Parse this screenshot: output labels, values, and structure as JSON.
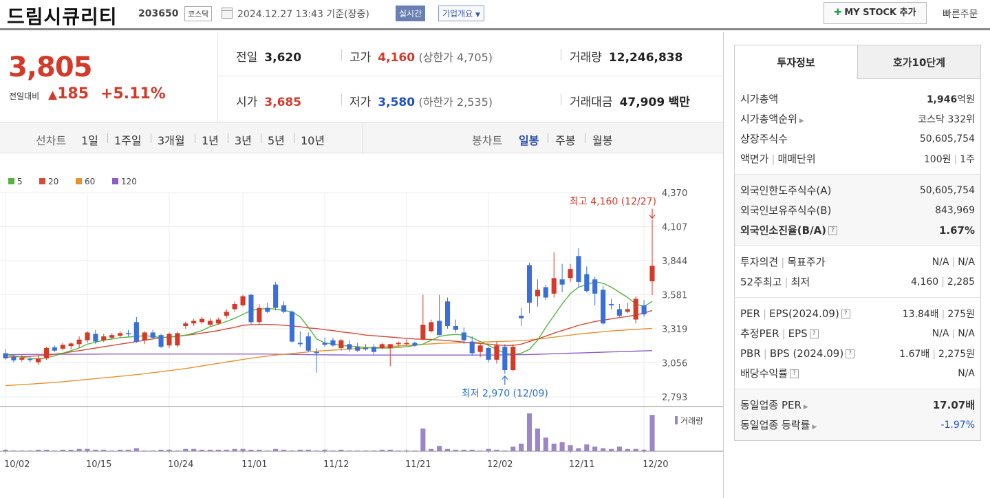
{
  "header": {
    "stock_name": "드림시큐리티",
    "stock_code": "203650",
    "market": "코스닥",
    "datetime": "2024.12.27 13:43",
    "basis": "기준(장중)",
    "realtime_label": "실시간",
    "overview_label": "기업개요",
    "mystock_label": "MY STOCK 추가",
    "quick_order_label": "빠른주문"
  },
  "price": {
    "current": "3,805",
    "change_label": "전일대비",
    "change": "185",
    "change_pct": "+5.11%"
  },
  "stats": {
    "prev_label": "전일",
    "prev": "3,620",
    "high_label": "고가",
    "high": "4,160",
    "upper_limit": "(상한가 4,705)",
    "volume_label": "거래량",
    "volume": "12,246,838",
    "open_label": "시가",
    "open": "3,685",
    "low_label": "저가",
    "low": "3,580",
    "lower_limit": "(하한가 2,535)",
    "amount_label": "거래대금",
    "amount": "47,909",
    "amount_unit": "백만"
  },
  "toolbar": {
    "line_chart_label": "선차트",
    "periods": [
      "1일",
      "1주일",
      "3개월",
      "1년",
      "3년",
      "5년",
      "10년"
    ],
    "candle_chart_label": "봉차트",
    "candle_periods": [
      "일봉",
      "주봉",
      "월봉"
    ],
    "selected_candle": "일봉"
  },
  "chart_data": {
    "type": "candlestick",
    "legend": [
      {
        "name": "5",
        "color": "#55b43f"
      },
      {
        "name": "20",
        "color": "#d44a38"
      },
      {
        "name": "60",
        "color": "#e8922e"
      },
      {
        "name": "120",
        "color": "#8e5cc8"
      }
    ],
    "y_ticks": [
      "4,370",
      "4,107",
      "3,844",
      "3,581",
      "3,319",
      "3,056",
      "2,793"
    ],
    "ylim": [
      2793,
      4370
    ],
    "x_tick_labels": [
      "10/02",
      "10/15",
      "10/24",
      "11/01",
      "11/12",
      "11/21",
      "12/02",
      "12/11",
      "12/20"
    ],
    "x_tick_index": [
      0,
      10,
      20,
      29,
      39,
      49,
      59,
      69,
      78
    ],
    "high_annotation": "최고 4,160 (12/27)",
    "low_annotation": "최저 2,970 (12/09)",
    "volume_label": "거래량",
    "colors": {
      "up": "#d43a2a",
      "down": "#3b6fd8",
      "volume": "#9b86c8"
    },
    "candles": [
      {
        "o": 3130,
        "h": 3165,
        "l": 3080,
        "c": 3090
      },
      {
        "o": 3100,
        "h": 3120,
        "l": 3060,
        "c": 3075
      },
      {
        "o": 3080,
        "h": 3115,
        "l": 3065,
        "c": 3095
      },
      {
        "o": 3085,
        "h": 3110,
        "l": 3060,
        "c": 3080
      },
      {
        "o": 3060,
        "h": 3110,
        "l": 3040,
        "c": 3090
      },
      {
        "o": 3090,
        "h": 3180,
        "l": 3080,
        "c": 3170
      },
      {
        "o": 3175,
        "h": 3190,
        "l": 3140,
        "c": 3150
      },
      {
        "o": 3165,
        "h": 3210,
        "l": 3150,
        "c": 3195
      },
      {
        "o": 3185,
        "h": 3215,
        "l": 3160,
        "c": 3205
      },
      {
        "o": 3200,
        "h": 3260,
        "l": 3170,
        "c": 3235
      },
      {
        "o": 3230,
        "h": 3300,
        "l": 3210,
        "c": 3290
      },
      {
        "o": 3280,
        "h": 3310,
        "l": 3200,
        "c": 3220
      },
      {
        "o": 3230,
        "h": 3280,
        "l": 3215,
        "c": 3260
      },
      {
        "o": 3250,
        "h": 3285,
        "l": 3235,
        "c": 3270
      },
      {
        "o": 3265,
        "h": 3300,
        "l": 3250,
        "c": 3285
      },
      {
        "o": 3285,
        "h": 3310,
        "l": 3260,
        "c": 3280
      },
      {
        "o": 3370,
        "h": 3410,
        "l": 3210,
        "c": 3220
      },
      {
        "o": 3230,
        "h": 3300,
        "l": 3200,
        "c": 3290
      },
      {
        "o": 3290,
        "h": 3310,
        "l": 3240,
        "c": 3250
      },
      {
        "o": 3270,
        "h": 3280,
        "l": 3170,
        "c": 3180
      },
      {
        "o": 3190,
        "h": 3290,
        "l": 3170,
        "c": 3280
      },
      {
        "o": 3190,
        "h": 3300,
        "l": 3175,
        "c": 3285
      },
      {
        "o": 3340,
        "h": 3375,
        "l": 3320,
        "c": 3360
      },
      {
        "o": 3360,
        "h": 3395,
        "l": 3340,
        "c": 3380
      },
      {
        "o": 3370,
        "h": 3410,
        "l": 3355,
        "c": 3395
      },
      {
        "o": 3350,
        "h": 3400,
        "l": 3340,
        "c": 3380
      },
      {
        "o": 3360,
        "h": 3405,
        "l": 3350,
        "c": 3390
      },
      {
        "o": 3420,
        "h": 3470,
        "l": 3400,
        "c": 3450
      },
      {
        "o": 3470,
        "h": 3530,
        "l": 3450,
        "c": 3510
      },
      {
        "o": 3500,
        "h": 3580,
        "l": 3490,
        "c": 3570
      },
      {
        "o": 3580,
        "h": 3590,
        "l": 3350,
        "c": 3370
      },
      {
        "o": 3370,
        "h": 3510,
        "l": 3350,
        "c": 3480
      },
      {
        "o": 3480,
        "h": 3520,
        "l": 3440,
        "c": 3450
      },
      {
        "o": 3660,
        "h": 3680,
        "l": 3460,
        "c": 3480
      },
      {
        "o": 3500,
        "h": 3530,
        "l": 3440,
        "c": 3450
      },
      {
        "o": 3450,
        "h": 3460,
        "l": 3210,
        "c": 3220
      },
      {
        "o": 3210,
        "h": 3300,
        "l": 3180,
        "c": 3200
      },
      {
        "o": 3260,
        "h": 3290,
        "l": 3140,
        "c": 3150
      },
      {
        "o": 3140,
        "h": 3170,
        "l": 2980,
        "c": 3130
      },
      {
        "o": 3210,
        "h": 3250,
        "l": 3180,
        "c": 3195
      },
      {
        "o": 3230,
        "h": 3250,
        "l": 3180,
        "c": 3190
      },
      {
        "o": 3170,
        "h": 3240,
        "l": 3150,
        "c": 3230
      },
      {
        "o": 3200,
        "h": 3230,
        "l": 3140,
        "c": 3160
      },
      {
        "o": 3180,
        "h": 3210,
        "l": 3140,
        "c": 3150
      },
      {
        "o": 3170,
        "h": 3200,
        "l": 3150,
        "c": 3160
      },
      {
        "o": 3180,
        "h": 3200,
        "l": 3120,
        "c": 3140
      },
      {
        "o": 3170,
        "h": 3210,
        "l": 3160,
        "c": 3200
      },
      {
        "o": 3170,
        "h": 3200,
        "l": 3030,
        "c": 3200
      },
      {
        "o": 3200,
        "h": 3220,
        "l": 3180,
        "c": 3210
      },
      {
        "o": 3200,
        "h": 3240,
        "l": 3190,
        "c": 3210
      },
      {
        "o": 3210,
        "h": 3220,
        "l": 3180,
        "c": 3190
      },
      {
        "o": 3240,
        "h": 3580,
        "l": 3230,
        "c": 3350
      },
      {
        "o": 3300,
        "h": 3390,
        "l": 3290,
        "c": 3370
      },
      {
        "o": 3380,
        "h": 3580,
        "l": 3270,
        "c": 3270
      },
      {
        "o": 3530,
        "h": 3560,
        "l": 3320,
        "c": 3340
      },
      {
        "o": 3340,
        "h": 3390,
        "l": 3290,
        "c": 3310
      },
      {
        "o": 3290,
        "h": 3330,
        "l": 3200,
        "c": 3230
      },
      {
        "o": 3220,
        "h": 3260,
        "l": 3110,
        "c": 3130
      },
      {
        "o": 3140,
        "h": 3200,
        "l": 3100,
        "c": 3190
      },
      {
        "o": 3170,
        "h": 3180,
        "l": 3060,
        "c": 3080
      },
      {
        "o": 3080,
        "h": 3220,
        "l": 3050,
        "c": 3190
      },
      {
        "o": 3180,
        "h": 3200,
        "l": 2970,
        "c": 3000
      },
      {
        "o": 3000,
        "h": 3200,
        "l": 2990,
        "c": 3180
      },
      {
        "o": 3420,
        "h": 3480,
        "l": 3340,
        "c": 3400
      },
      {
        "o": 3810,
        "h": 3830,
        "l": 3440,
        "c": 3520
      },
      {
        "o": 3570,
        "h": 3700,
        "l": 3490,
        "c": 3620
      },
      {
        "o": 3640,
        "h": 3660,
        "l": 3540,
        "c": 3560
      },
      {
        "o": 3590,
        "h": 3910,
        "l": 3560,
        "c": 3710
      },
      {
        "o": 3700,
        "h": 3820,
        "l": 3600,
        "c": 3660
      },
      {
        "o": 3710,
        "h": 3820,
        "l": 3680,
        "c": 3780
      },
      {
        "o": 3880,
        "h": 3940,
        "l": 3640,
        "c": 3680
      },
      {
        "o": 3740,
        "h": 3800,
        "l": 3600,
        "c": 3610
      },
      {
        "o": 3700,
        "h": 3720,
        "l": 3500,
        "c": 3590
      },
      {
        "o": 3620,
        "h": 3650,
        "l": 3350,
        "c": 3360
      },
      {
        "o": 3510,
        "h": 3550,
        "l": 3470,
        "c": 3500
      },
      {
        "o": 3470,
        "h": 3510,
        "l": 3410,
        "c": 3420
      },
      {
        "o": 3450,
        "h": 3520,
        "l": 3440,
        "c": 3470
      },
      {
        "o": 3390,
        "h": 3570,
        "l": 3360,
        "c": 3550
      },
      {
        "o": 3500,
        "h": 3540,
        "l": 3410,
        "c": 3430
      },
      {
        "o": 3685,
        "h": 4160,
        "l": 3580,
        "c": 3805
      }
    ],
    "volumes": [
      2,
      1,
      1,
      1,
      2,
      2,
      1,
      2,
      2,
      3,
      3,
      2,
      2,
      1,
      2,
      2,
      4,
      1,
      1,
      2,
      2,
      1,
      3,
      3,
      2,
      2,
      2,
      2,
      3,
      3,
      2,
      2,
      1,
      3,
      2,
      1,
      2,
      2,
      1,
      2,
      1,
      2,
      1,
      1,
      1,
      1,
      2,
      2,
      1,
      1,
      1,
      30,
      3,
      7,
      3,
      2,
      2,
      2,
      1,
      3,
      2,
      1,
      6,
      10,
      50,
      30,
      18,
      10,
      12,
      8,
      4,
      9,
      6,
      4,
      3,
      6,
      3,
      3,
      2,
      48
    ],
    "ma5": [
      3120,
      3110,
      3100,
      3090,
      3085,
      3095,
      3110,
      3130,
      3150,
      3170,
      3200,
      3215,
      3230,
      3240,
      3250,
      3255,
      3260,
      3265,
      3260,
      3250,
      3255,
      3260,
      3270,
      3285,
      3305,
      3335,
      3355,
      3375,
      3400,
      3430,
      3460,
      3470,
      3475,
      3470,
      3460,
      3450,
      3410,
      3330,
      3240,
      3210,
      3200,
      3190,
      3185,
      3180,
      3175,
      3170,
      3170,
      3170,
      3175,
      3180,
      3190,
      3200,
      3230,
      3260,
      3270,
      3275,
      3270,
      3250,
      3220,
      3190,
      3160,
      3130,
      3120,
      3130,
      3160,
      3230,
      3330,
      3420,
      3510,
      3590,
      3640,
      3660,
      3680,
      3670,
      3640,
      3600,
      3560,
      3510,
      3490,
      3530
    ],
    "ma20": [
      3100,
      3102,
      3104,
      3106,
      3110,
      3115,
      3122,
      3130,
      3140,
      3150,
      3160,
      3170,
      3180,
      3190,
      3200,
      3210,
      3220,
      3230,
      3240,
      3250,
      3255,
      3260,
      3268,
      3276,
      3285,
      3295,
      3305,
      3318,
      3330,
      3345,
      3350,
      3352,
      3352,
      3350,
      3346,
      3340,
      3335,
      3325,
      3320,
      3312,
      3305,
      3295,
      3288,
      3280,
      3270,
      3265,
      3260,
      3255,
      3250,
      3245,
      3240,
      3238,
      3236,
      3232,
      3228,
      3222,
      3216,
      3210,
      3205,
      3200,
      3195,
      3190,
      3190,
      3200,
      3220,
      3240,
      3262,
      3285,
      3305,
      3325,
      3345,
      3360,
      3375,
      3385,
      3395,
      3405,
      3415,
      3425,
      3440,
      3460
    ],
    "ma60": [
      2880,
      2884,
      2888,
      2892,
      2896,
      2900,
      2905,
      2910,
      2916,
      2922,
      2928,
      2934,
      2940,
      2946,
      2952,
      2958,
      2965,
      2972,
      2980,
      2988,
      2996,
      3004,
      3012,
      3022,
      3032,
      3042,
      3052,
      3062,
      3072,
      3082,
      3092,
      3100,
      3108,
      3116,
      3122,
      3128,
      3134,
      3140,
      3146,
      3150,
      3154,
      3158,
      3162,
      3166,
      3170,
      3174,
      3178,
      3182,
      3186,
      3190,
      3194,
      3198,
      3202,
      3206,
      3208,
      3210,
      3212,
      3214,
      3216,
      3218,
      3220,
      3222,
      3224,
      3228,
      3232,
      3238,
      3246,
      3254,
      3262,
      3270,
      3278,
      3284,
      3290,
      3296,
      3302,
      3306,
      3310,
      3314,
      3318,
      3322
    ],
    "ma120": [
      3120,
      3120,
      3120,
      3121,
      3121,
      3121,
      3122,
      3122,
      3122,
      3123,
      3123,
      3123,
      3124,
      3124,
      3124,
      3124,
      3124,
      3124,
      3124,
      3124,
      3124,
      3124,
      3124,
      3124,
      3124,
      3124,
      3124,
      3124,
      3124,
      3124,
      3124,
      3124,
      3124,
      3123,
      3122,
      3121,
      3120,
      3119,
      3118,
      3118,
      3117,
      3117,
      3116,
      3116,
      3116,
      3116,
      3116,
      3116,
      3116,
      3116,
      3116,
      3116,
      3116,
      3116,
      3116,
      3116,
      3116,
      3116,
      3116,
      3116,
      3116,
      3117,
      3118,
      3119,
      3120,
      3122,
      3124,
      3126,
      3128,
      3130,
      3132,
      3134,
      3136,
      3138,
      3140,
      3142,
      3144,
      3146,
      3148,
      3150
    ]
  },
  "right_panel": {
    "tabs": [
      "투자정보",
      "호가10단계"
    ],
    "market_cap_label": "시가총액",
    "market_cap": "1,946",
    "market_cap_unit": "억원",
    "rank_label": "시가총액순위",
    "rank": "코스닥 332위",
    "shares_label": "상장주식수",
    "shares": "50,605,754",
    "par_label": "액면가",
    "unit_label": "매매단위",
    "par": "100원",
    "unit": "1주",
    "foreign_limit_label": "외국인한도주식수(A)",
    "foreign_limit": "50,605,754",
    "foreign_hold_label": "외국인보유주식수(B)",
    "foreign_hold": "843,969",
    "foreign_ratio_label": "외국인소진율(B/A)",
    "foreign_ratio": "1.67%",
    "opinion_label": "투자의견",
    "target_label": "목표주가",
    "opinion": "N/A",
    "target": "N/A",
    "w52_high_label": "52주최고",
    "w52_low_label": "최저",
    "w52_high": "4,160",
    "w52_low": "2,285",
    "per_label": "PER",
    "eps_label": "EPS(2024.09)",
    "per": "13.84배",
    "eps": "275원",
    "est_per_label": "추정PER",
    "est_eps_label": "EPS",
    "est_per": "N/A",
    "est_eps": "N/A",
    "pbr_label": "PBR",
    "bps_label": "BPS (2024.09)",
    "pbr": "1.67배",
    "bps": "2,275원",
    "div_label": "배당수익률",
    "div": "N/A",
    "sector_per_label": "동일업종 PER",
    "sector_per": "17.07배",
    "sector_chg_label": "동일업종 등락률",
    "sector_chg": "-1.97%"
  }
}
